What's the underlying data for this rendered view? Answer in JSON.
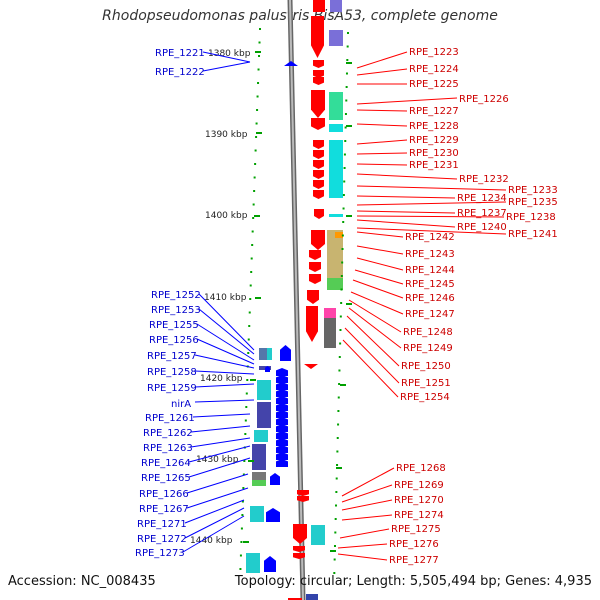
{
  "title": "Rhodopseudomonas palustris BisA53, complete genome",
  "footer": {
    "accession": "Accession: NC_008435",
    "summary": "Topology: circular; Length: 5,505,494 bp; Genes: 4,935"
  },
  "colors": {
    "forward": "#ff0000",
    "reverse": "#0000ff",
    "backbone": "#888888",
    "ticks": "#00a000"
  },
  "scale_labels": [
    "1380 kbp",
    "1390 kbp",
    "1400 kbp",
    "1410 kbp",
    "1420 kbp",
    "1430 kbp",
    "1440 kbp"
  ],
  "reverse_genes": [
    "RPE_1221",
    "RPE_1222",
    "RPE_1252",
    "RPE_1253",
    "RPE_1255",
    "RPE_1256",
    "RPE_1257",
    "RPE_1258",
    "RPE_1259",
    "nirA",
    "RPE_1261",
    "RPE_1262",
    "RPE_1263",
    "RPE_1264",
    "RPE_1265",
    "RPE_1266",
    "RPE_1267",
    "RPE_1271",
    "RPE_1272",
    "RPE_1273"
  ],
  "forward_genes": [
    "RPE_1223",
    "RPE_1224",
    "RPE_1225",
    "RPE_1226",
    "RPE_1227",
    "RPE_1228",
    "RPE_1229",
    "RPE_1230",
    "RPE_1231",
    "RPE_1232",
    "RPE_1233",
    "RPE_1234",
    "RPE_1235",
    "RPE_1237",
    "RPE_1238",
    "RPE_1240",
    "RPE_1241",
    "RPE_1242",
    "RPE_1243",
    "RPE_1244",
    "RPE_1245",
    "RPE_1246",
    "RPE_1247",
    "RPE_1248",
    "RPE_1249",
    "RPE_1250",
    "RPE_1251",
    "RPE_1254",
    "RPE_1268",
    "RPE_1269",
    "RPE_1270",
    "RPE_1274",
    "RPE_1275",
    "RPE_1276",
    "RPE_1277"
  ]
}
